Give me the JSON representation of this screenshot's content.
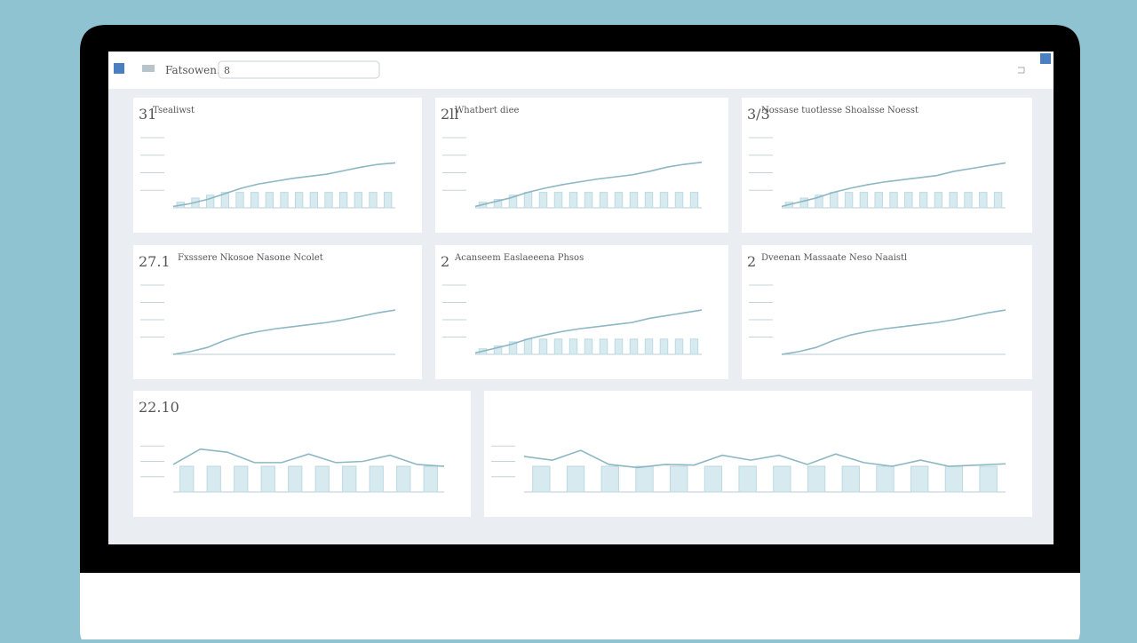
{
  "toolbar": {
    "title": "Fatsowen.",
    "search": "8"
  },
  "panels": [
    {
      "number": "31",
      "title": "Tsealiwst",
      "ylim": [
        0,
        100
      ],
      "yticks": [
        25,
        50,
        75,
        100
      ],
      "line": [
        2,
        6,
        12,
        20,
        28,
        34,
        38,
        42,
        45,
        48,
        53,
        58,
        62,
        64
      ],
      "bars": [
        8,
        14,
        18,
        22,
        22,
        22,
        22,
        22,
        22,
        22,
        22,
        22,
        22,
        22,
        22
      ]
    },
    {
      "number": "2ll",
      "title": "Whatbert diee",
      "ylim": [
        0,
        100
      ],
      "yticks": [
        25,
        50,
        75,
        100
      ],
      "line": [
        2,
        8,
        14,
        22,
        28,
        33,
        37,
        41,
        44,
        47,
        52,
        58,
        62,
        65
      ],
      "bars": [
        8,
        12,
        18,
        22,
        22,
        22,
        22,
        22,
        22,
        22,
        22,
        22,
        22,
        22,
        22
      ]
    },
    {
      "number": "3/3",
      "title": "Nossase tuotlesse Shoalsse Noesst",
      "ylim": [
        0,
        100
      ],
      "yticks": [
        25,
        50,
        75,
        100
      ],
      "line": [
        2,
        8,
        14,
        22,
        28,
        33,
        37,
        40,
        43,
        46,
        52,
        56,
        60,
        64
      ],
      "bars": [
        8,
        14,
        18,
        22,
        22,
        22,
        22,
        22,
        22,
        22,
        22,
        22,
        22,
        22,
        22
      ]
    },
    {
      "number": "27.1",
      "title": "Fxsssere Nkosoe Nasone Ncolet",
      "ylim": [
        0,
        100
      ],
      "yticks": [
        25,
        50,
        75,
        100
      ],
      "line": [
        0,
        4,
        10,
        20,
        28,
        33,
        37,
        40,
        43,
        46,
        50,
        55,
        60,
        64
      ]
    },
    {
      "number": "2",
      "title": "Acanseem Easlaeeena Phsos",
      "ylim": [
        0,
        100
      ],
      "yticks": [
        25,
        50,
        75,
        100
      ],
      "line": [
        2,
        8,
        14,
        22,
        28,
        33,
        37,
        40,
        43,
        46,
        52,
        56,
        60,
        64
      ],
      "bars": [
        8,
        12,
        18,
        22,
        22,
        22,
        22,
        22,
        22,
        22,
        22,
        22,
        22,
        22,
        22
      ]
    },
    {
      "number": "2",
      "title": "Dveenan Massaate Neso Naaistl",
      "ylim": [
        0,
        100
      ],
      "yticks": [
        25,
        50,
        75,
        100
      ],
      "line": [
        0,
        4,
        10,
        20,
        28,
        33,
        37,
        40,
        43,
        46,
        50,
        55,
        60,
        64
      ]
    },
    {
      "number": "22.10",
      "ylim": [
        0,
        100
      ],
      "yticks": [
        25,
        50,
        75
      ],
      "line": [
        45,
        70,
        65,
        48,
        48,
        62,
        48,
        50,
        60,
        45,
        42
      ],
      "bars": [
        42,
        42,
        42,
        42,
        42,
        42,
        42,
        42,
        42,
        42
      ]
    },
    {
      "ylim": [
        0,
        100
      ],
      "yticks": [
        25,
        50,
        75
      ],
      "line": [
        58,
        52,
        68,
        45,
        40,
        45,
        44,
        60,
        52,
        60,
        45,
        62,
        48,
        42,
        52,
        42,
        44,
        46
      ],
      "bars": [
        42,
        42,
        42,
        42,
        42,
        42,
        42,
        42,
        42,
        42,
        42,
        42,
        42,
        42
      ]
    }
  ]
}
